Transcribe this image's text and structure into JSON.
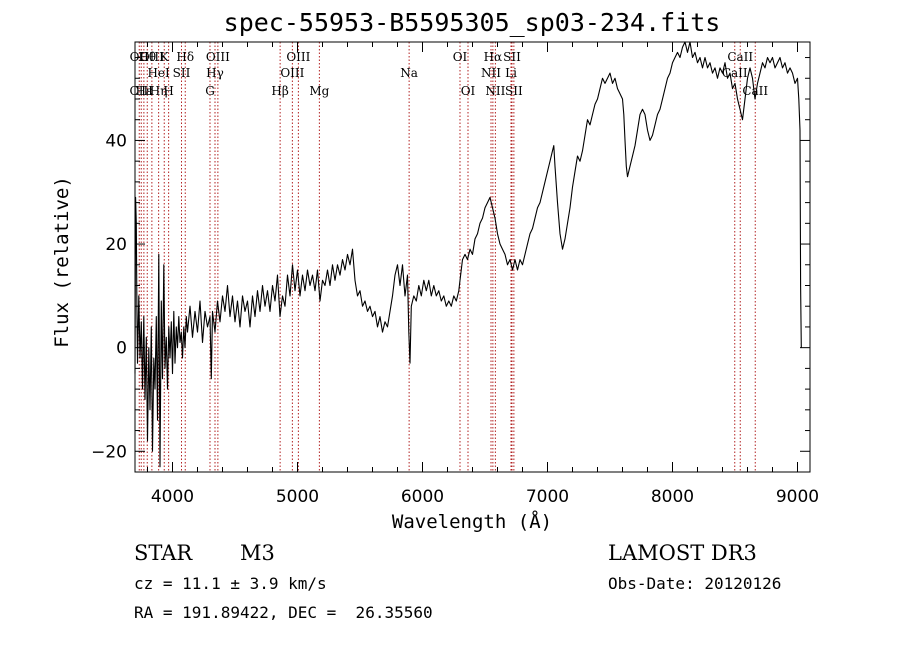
{
  "chart_data": {
    "type": "line",
    "title": "spec-55953-B5595305_sp03-234.fits",
    "xlabel": "Wavelength (Å)",
    "ylabel": "Flux (relative)",
    "xlim": [
      3700,
      9100
    ],
    "ylim": [
      -24,
      59
    ],
    "x_ticks": [
      4000,
      5000,
      6000,
      7000,
      8000,
      9000
    ],
    "x_tick_labels": [
      "4000",
      "5000",
      "6000",
      "7000",
      "8000",
      "9000"
    ],
    "y_ticks": [
      -20,
      0,
      20,
      40
    ],
    "y_tick_labels": [
      "−20",
      "0",
      "20",
      "40"
    ],
    "line_color": "#000000",
    "marker_color": "#b22222",
    "series": [
      {
        "name": "flux",
        "points": [
          [
            3700,
            -5
          ],
          [
            3705,
            29
          ],
          [
            3710,
            24
          ],
          [
            3715,
            8
          ],
          [
            3720,
            -3
          ],
          [
            3730,
            10
          ],
          [
            3740,
            -2
          ],
          [
            3750,
            5
          ],
          [
            3760,
            -8
          ],
          [
            3770,
            6
          ],
          [
            3780,
            -10
          ],
          [
            3790,
            2
          ],
          [
            3800,
            -18
          ],
          [
            3810,
            0
          ],
          [
            3820,
            -12
          ],
          [
            3830,
            4
          ],
          [
            3840,
            -20
          ],
          [
            3850,
            -2
          ],
          [
            3860,
            -8
          ],
          [
            3870,
            6
          ],
          [
            3880,
            -14
          ],
          [
            3890,
            18
          ],
          [
            3900,
            -23
          ],
          [
            3910,
            9
          ],
          [
            3920,
            -6
          ],
          [
            3930,
            16
          ],
          [
            3940,
            -4
          ],
          [
            3950,
            2
          ],
          [
            3960,
            -8
          ],
          [
            3970,
            4
          ],
          [
            3980,
            -2
          ],
          [
            3990,
            5
          ],
          [
            4000,
            -5
          ],
          [
            4010,
            7
          ],
          [
            4020,
            -3
          ],
          [
            4030,
            4
          ],
          [
            4040,
            0
          ],
          [
            4050,
            6
          ],
          [
            4060,
            1
          ],
          [
            4070,
            3
          ],
          [
            4080,
            -2
          ],
          [
            4090,
            4
          ],
          [
            4100,
            0
          ],
          [
            4110,
            6
          ],
          [
            4120,
            3
          ],
          [
            4140,
            8
          ],
          [
            4160,
            2
          ],
          [
            4180,
            7
          ],
          [
            4200,
            3
          ],
          [
            4220,
            9
          ],
          [
            4240,
            1
          ],
          [
            4260,
            7
          ],
          [
            4280,
            4
          ],
          [
            4300,
            6
          ],
          [
            4310,
            -6
          ],
          [
            4320,
            7
          ],
          [
            4340,
            3
          ],
          [
            4360,
            9
          ],
          [
            4380,
            5
          ],
          [
            4400,
            10
          ],
          [
            4420,
            7
          ],
          [
            4440,
            12
          ],
          [
            4460,
            6
          ],
          [
            4480,
            10
          ],
          [
            4500,
            5
          ],
          [
            4520,
            9
          ],
          [
            4540,
            4
          ],
          [
            4560,
            10
          ],
          [
            4580,
            7
          ],
          [
            4600,
            9
          ],
          [
            4620,
            4
          ],
          [
            4640,
            10
          ],
          [
            4660,
            6
          ],
          [
            4680,
            11
          ],
          [
            4700,
            7
          ],
          [
            4720,
            12
          ],
          [
            4740,
            8
          ],
          [
            4760,
            11
          ],
          [
            4780,
            7
          ],
          [
            4800,
            12
          ],
          [
            4820,
            9
          ],
          [
            4840,
            14
          ],
          [
            4860,
            6
          ],
          [
            4880,
            10
          ],
          [
            4900,
            8
          ],
          [
            4920,
            14
          ],
          [
            4940,
            10
          ],
          [
            4960,
            16
          ],
          [
            4980,
            11
          ],
          [
            5000,
            15
          ],
          [
            5020,
            10
          ],
          [
            5040,
            14
          ],
          [
            5060,
            11
          ],
          [
            5080,
            15
          ],
          [
            5100,
            12
          ],
          [
            5120,
            14
          ],
          [
            5140,
            11
          ],
          [
            5160,
            15
          ],
          [
            5180,
            9
          ],
          [
            5200,
            13
          ],
          [
            5220,
            12
          ],
          [
            5240,
            15
          ],
          [
            5260,
            12
          ],
          [
            5280,
            16
          ],
          [
            5300,
            13
          ],
          [
            5320,
            16
          ],
          [
            5340,
            14
          ],
          [
            5360,
            17
          ],
          [
            5380,
            15
          ],
          [
            5400,
            18
          ],
          [
            5420,
            16
          ],
          [
            5440,
            19
          ],
          [
            5460,
            13
          ],
          [
            5480,
            10
          ],
          [
            5500,
            11
          ],
          [
            5520,
            8
          ],
          [
            5540,
            9
          ],
          [
            5560,
            7
          ],
          [
            5580,
            8
          ],
          [
            5600,
            6
          ],
          [
            5620,
            7
          ],
          [
            5640,
            4
          ],
          [
            5660,
            6
          ],
          [
            5680,
            3
          ],
          [
            5700,
            5
          ],
          [
            5720,
            4
          ],
          [
            5740,
            7
          ],
          [
            5760,
            10
          ],
          [
            5780,
            14
          ],
          [
            5800,
            16
          ],
          [
            5820,
            12
          ],
          [
            5840,
            16
          ],
          [
            5860,
            10
          ],
          [
            5880,
            14
          ],
          [
            5890,
            3
          ],
          [
            5900,
            -3
          ],
          [
            5910,
            8
          ],
          [
            5930,
            10
          ],
          [
            5950,
            9
          ],
          [
            5970,
            12
          ],
          [
            5990,
            10
          ],
          [
            6010,
            13
          ],
          [
            6030,
            11
          ],
          [
            6050,
            13
          ],
          [
            6070,
            10
          ],
          [
            6090,
            12
          ],
          [
            6110,
            10
          ],
          [
            6130,
            11
          ],
          [
            6150,
            9
          ],
          [
            6170,
            10
          ],
          [
            6190,
            8
          ],
          [
            6210,
            9
          ],
          [
            6230,
            8
          ],
          [
            6250,
            10
          ],
          [
            6270,
            9
          ],
          [
            6290,
            11
          ],
          [
            6300,
            13
          ],
          [
            6320,
            17
          ],
          [
            6340,
            18
          ],
          [
            6360,
            17
          ],
          [
            6380,
            19
          ],
          [
            6400,
            18
          ],
          [
            6420,
            21
          ],
          [
            6440,
            22
          ],
          [
            6460,
            24
          ],
          [
            6480,
            25
          ],
          [
            6500,
            27
          ],
          [
            6520,
            28
          ],
          [
            6540,
            29
          ],
          [
            6560,
            27
          ],
          [
            6580,
            25
          ],
          [
            6600,
            22
          ],
          [
            6620,
            20
          ],
          [
            6640,
            19
          ],
          [
            6660,
            18
          ],
          [
            6680,
            16
          ],
          [
            6700,
            17
          ],
          [
            6720,
            15
          ],
          [
            6740,
            17
          ],
          [
            6760,
            15
          ],
          [
            6780,
            17
          ],
          [
            6800,
            16
          ],
          [
            6820,
            18
          ],
          [
            6840,
            20
          ],
          [
            6860,
            22
          ],
          [
            6880,
            23
          ],
          [
            6900,
            25
          ],
          [
            6920,
            27
          ],
          [
            6940,
            28
          ],
          [
            6960,
            30
          ],
          [
            6980,
            32
          ],
          [
            7000,
            34
          ],
          [
            7020,
            36
          ],
          [
            7040,
            38
          ],
          [
            7050,
            39
          ],
          [
            7060,
            35
          ],
          [
            7080,
            28
          ],
          [
            7100,
            22
          ],
          [
            7120,
            19
          ],
          [
            7140,
            21
          ],
          [
            7160,
            24
          ],
          [
            7180,
            27
          ],
          [
            7200,
            31
          ],
          [
            7220,
            34
          ],
          [
            7240,
            37
          ],
          [
            7260,
            36
          ],
          [
            7280,
            38
          ],
          [
            7300,
            41
          ],
          [
            7320,
            44
          ],
          [
            7340,
            43
          ],
          [
            7360,
            45
          ],
          [
            7380,
            47
          ],
          [
            7400,
            48
          ],
          [
            7420,
            50
          ],
          [
            7440,
            52
          ],
          [
            7460,
            51
          ],
          [
            7480,
            52
          ],
          [
            7500,
            53
          ],
          [
            7520,
            51
          ],
          [
            7540,
            52
          ],
          [
            7560,
            50
          ],
          [
            7580,
            49
          ],
          [
            7600,
            48
          ],
          [
            7610,
            45
          ],
          [
            7620,
            40
          ],
          [
            7630,
            35
          ],
          [
            7640,
            33
          ],
          [
            7660,
            35
          ],
          [
            7680,
            37
          ],
          [
            7700,
            39
          ],
          [
            7720,
            42
          ],
          [
            7740,
            45
          ],
          [
            7760,
            46
          ],
          [
            7780,
            45
          ],
          [
            7800,
            42
          ],
          [
            7820,
            40
          ],
          [
            7840,
            41
          ],
          [
            7860,
            43
          ],
          [
            7880,
            45
          ],
          [
            7900,
            46
          ],
          [
            7920,
            48
          ],
          [
            7940,
            50
          ],
          [
            7960,
            52
          ],
          [
            7980,
            53
          ],
          [
            8000,
            55
          ],
          [
            8020,
            56
          ],
          [
            8040,
            57
          ],
          [
            8060,
            56
          ],
          [
            8080,
            58
          ],
          [
            8100,
            59
          ],
          [
            8120,
            57
          ],
          [
            8140,
            59
          ],
          [
            8160,
            56
          ],
          [
            8180,
            57
          ],
          [
            8200,
            55
          ],
          [
            8220,
            56
          ],
          [
            8240,
            54
          ],
          [
            8260,
            56
          ],
          [
            8280,
            54
          ],
          [
            8300,
            55
          ],
          [
            8320,
            53
          ],
          [
            8340,
            54
          ],
          [
            8360,
            52
          ],
          [
            8380,
            54
          ],
          [
            8400,
            53
          ],
          [
            8420,
            55
          ],
          [
            8440,
            52
          ],
          [
            8460,
            53
          ],
          [
            8480,
            50
          ],
          [
            8500,
            51
          ],
          [
            8520,
            48
          ],
          [
            8540,
            46
          ],
          [
            8560,
            44
          ],
          [
            8580,
            48
          ],
          [
            8600,
            52
          ],
          [
            8620,
            54
          ],
          [
            8640,
            52
          ],
          [
            8660,
            48
          ],
          [
            8680,
            51
          ],
          [
            8700,
            53
          ],
          [
            8720,
            55
          ],
          [
            8740,
            54
          ],
          [
            8760,
            56
          ],
          [
            8780,
            55
          ],
          [
            8800,
            56
          ],
          [
            8820,
            54
          ],
          [
            8840,
            55
          ],
          [
            8860,
            56
          ],
          [
            8880,
            54
          ],
          [
            8900,
            55
          ],
          [
            8920,
            53
          ],
          [
            8940,
            54
          ],
          [
            8960,
            53
          ],
          [
            8980,
            51
          ],
          [
            9000,
            52
          ],
          [
            9010,
            48
          ],
          [
            9020,
            42
          ],
          [
            9025,
            12
          ],
          [
            9030,
            0
          ]
        ]
      }
    ],
    "lines": [
      {
        "x": 3734,
        "top": "OII"
      },
      {
        "x": 3750,
        "bot": "CIII"
      },
      {
        "x": 3771,
        "bot": "Hε"
      },
      {
        "x": 3798,
        "top": "Hθ"
      },
      {
        "x": 3835,
        "top": "OIII"
      },
      {
        "x": 3889,
        "mid": "HeI",
        "bot": "Hη"
      },
      {
        "x": 3934,
        "top": "K"
      },
      {
        "x": 3969,
        "bot": "H"
      },
      {
        "x": 4072,
        "mid": "SII"
      },
      {
        "x": 4102,
        "top": "Hδ"
      },
      {
        "x": 4300,
        "bot": "G"
      },
      {
        "x": 4340,
        "mid": "Hγ"
      },
      {
        "x": 4363,
        "top": "OIII"
      },
      {
        "x": 4861,
        "bot": "Hβ"
      },
      {
        "x": 4959,
        "mid": "OIII"
      },
      {
        "x": 5007,
        "top": "OIII"
      },
      {
        "x": 5175,
        "bot": "Mg"
      },
      {
        "x": 5893,
        "mid": "Na"
      },
      {
        "x": 6300,
        "top": "OI"
      },
      {
        "x": 6364,
        "bot": "OI"
      },
      {
        "x": 6548,
        "mid": "NII"
      },
      {
        "x": 6563,
        "top": "Hα"
      },
      {
        "x": 6583,
        "bot": "NII"
      },
      {
        "x": 6708,
        "mid": "Li"
      },
      {
        "x": 6716,
        "top": "SII"
      },
      {
        "x": 6731,
        "bot": "SII"
      },
      {
        "x": 8498,
        "mid": "CaII"
      },
      {
        "x": 8542,
        "top": "CaII"
      },
      {
        "x": 8662,
        "bot": "CaII"
      }
    ]
  },
  "info": {
    "object_class": "STAR",
    "subclass": "M3",
    "survey": "LAMOST DR3",
    "cz": "cz = 11.1 ± 3.9 km/s",
    "obs_date": "Obs-Date: 20120126",
    "coords": "RA = 191.89422, DEC =  26.35560"
  }
}
